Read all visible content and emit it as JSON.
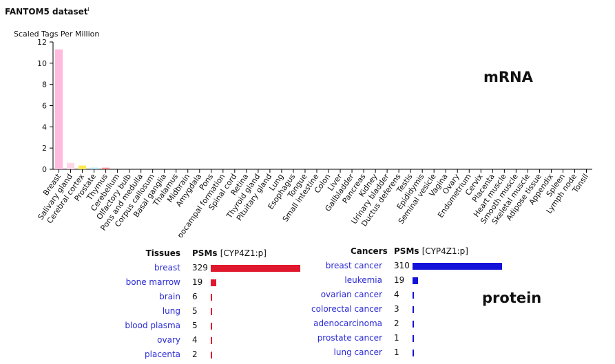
{
  "title": "FANTOM5 dataset",
  "title_sup": "i",
  "labels": {
    "mrna": "mRNA",
    "protein": "protein"
  },
  "chart_data": {
    "type": "bar",
    "ylabel": "Scaled Tags Per Million",
    "ylim": [
      0,
      12
    ],
    "yticks": [
      0,
      2,
      4,
      6,
      8,
      10,
      12
    ],
    "categories": [
      "Breast",
      "Salivary gland",
      "Cerebral cortex",
      "Prostate",
      "Thymus",
      "Cerebellum",
      "Olfactory bulb",
      "Pons and medulla",
      "Corpus callosum",
      "Basal ganglia",
      "Thalamus",
      "Midbrain",
      "Amygdala",
      "Pons",
      "Hippocampal formation",
      "Spinal cord",
      "Retina",
      "Thyroid gland",
      "Pituitary gland",
      "Lung",
      "Esophagus",
      "Tongue",
      "Small intestine",
      "Colon",
      "Liver",
      "Gallbladder",
      "Pancreas",
      "Kidney",
      "Urinary bladder",
      "Ductus deferens",
      "Testis",
      "Epididymis",
      "Seminal vesicle",
      "Vagina",
      "Ovary",
      "Endometrium",
      "Cervix",
      "Placenta",
      "Heart muscle",
      "Smooth muscle",
      "Skeletal muscle",
      "Adipose tissue",
      "Appendix",
      "Spleen",
      "Lymph node",
      "Tonsil"
    ],
    "values": [
      11.3,
      0.6,
      0.35,
      0.15,
      0.15,
      0,
      0,
      0,
      0,
      0,
      0,
      0,
      0,
      0,
      0,
      0,
      0,
      0,
      0,
      0,
      0,
      0,
      0,
      0,
      0,
      0,
      0,
      0,
      0,
      0,
      0,
      0,
      0,
      0,
      0,
      0,
      0,
      0,
      0,
      0,
      0,
      0,
      0,
      0,
      0,
      0
    ],
    "colors": [
      "#ffbbdd",
      "#ffd6e6",
      "#ffe94d",
      "#b0e0f0",
      "#ee8888",
      "#cccccc",
      "#cccccc",
      "#cccccc",
      "#cccccc",
      "#cccccc",
      "#cccccc",
      "#cccccc",
      "#cccccc",
      "#cccccc",
      "#cccccc",
      "#cccccc",
      "#cccccc",
      "#cccccc",
      "#cccccc",
      "#cccccc",
      "#cccccc",
      "#cccccc",
      "#cccccc",
      "#cccccc",
      "#cccccc",
      "#cccccc",
      "#cccccc",
      "#cccccc",
      "#cccccc",
      "#cccccc",
      "#cccccc",
      "#cccccc",
      "#cccccc",
      "#cccccc",
      "#cccccc",
      "#cccccc",
      "#cccccc",
      "#cccccc",
      "#cccccc",
      "#cccccc",
      "#cccccc",
      "#cccccc",
      "#cccccc",
      "#cccccc",
      "#cccccc",
      "#cccccc"
    ]
  },
  "tissues": {
    "header": "Tissues",
    "psm_label": "PSMs",
    "psm_unit": "[CYP4Z1:p]",
    "bar_color": "#e0182d",
    "max": 329,
    "rows": [
      {
        "name": "breast",
        "value": 329
      },
      {
        "name": "bone marrow",
        "value": 19
      },
      {
        "name": "brain",
        "value": 6
      },
      {
        "name": "lung",
        "value": 5
      },
      {
        "name": "blood plasma",
        "value": 5
      },
      {
        "name": "ovary",
        "value": 4
      },
      {
        "name": "placenta",
        "value": 2
      }
    ]
  },
  "cancers": {
    "header": "Cancers",
    "psm_label": "PSMs",
    "psm_unit": "[CYP4Z1:p]",
    "bar_color": "#1212d8",
    "max": 310,
    "rows": [
      {
        "name": "breast cancer",
        "value": 310
      },
      {
        "name": "leukemia",
        "value": 19
      },
      {
        "name": "ovarian cancer",
        "value": 4
      },
      {
        "name": "colorectal cancer",
        "value": 3
      },
      {
        "name": "adenocarcinoma",
        "value": 2
      },
      {
        "name": "prostate cancer",
        "value": 1
      },
      {
        "name": "lung cancer",
        "value": 1
      }
    ]
  }
}
